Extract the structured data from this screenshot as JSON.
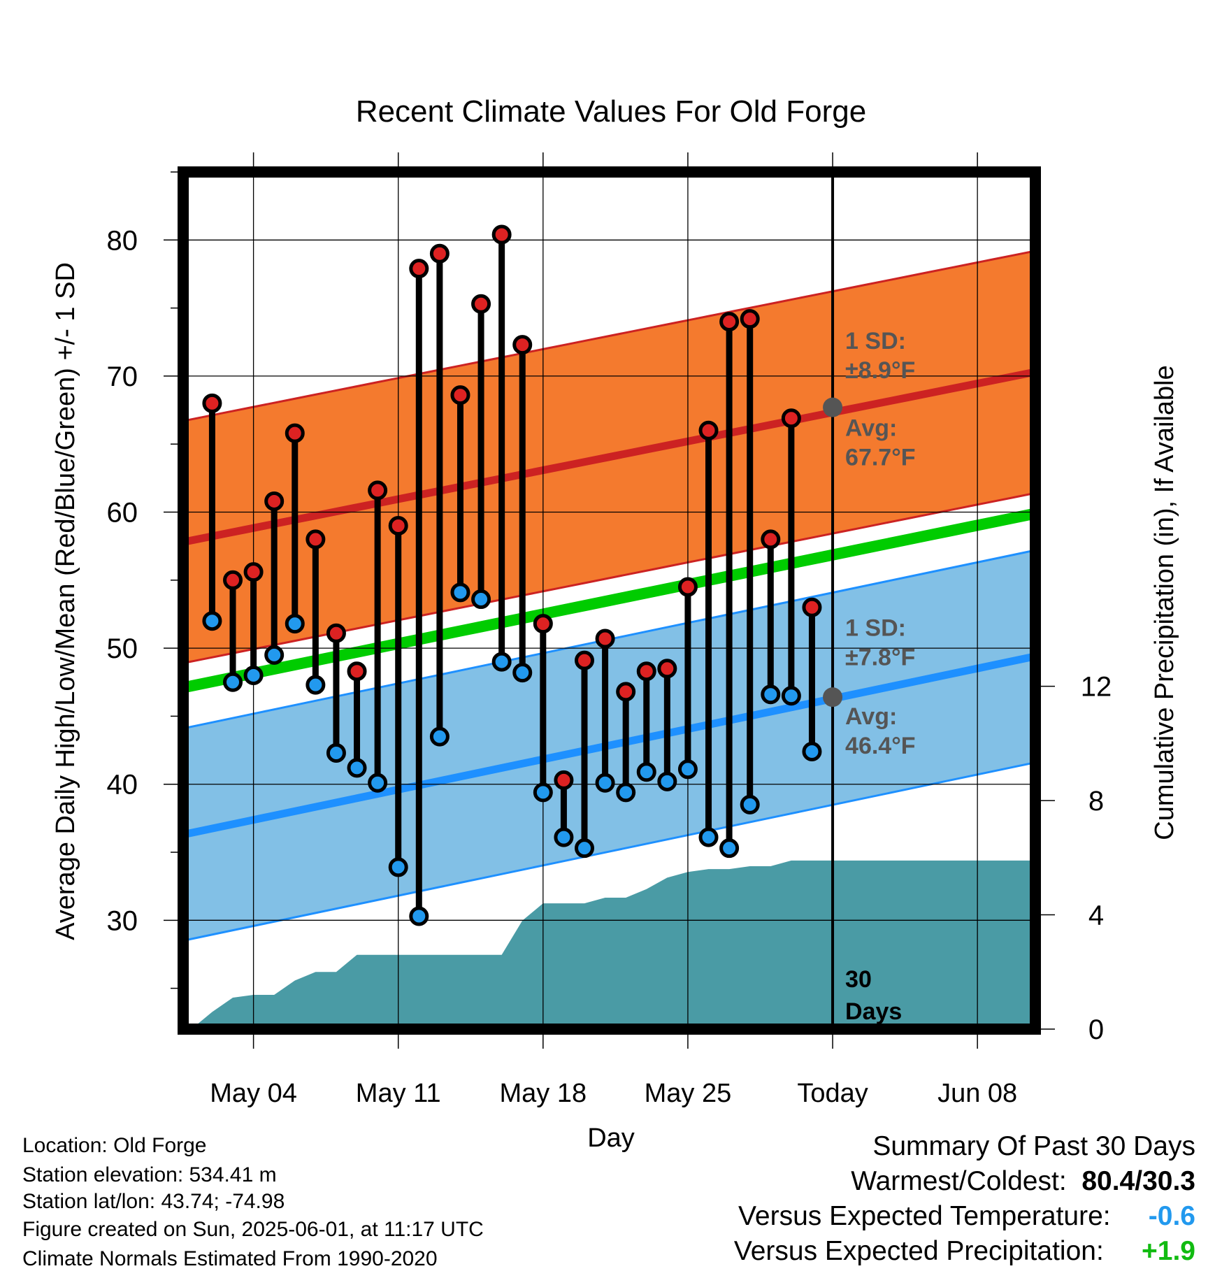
{
  "chart_data": {
    "type": "line",
    "title": "Recent Climate Values For Old Forge",
    "xlabel": "Day",
    "ylabel": "Average Daily High/Low/Mean (Red/Blue/Green) +/- 1 SD",
    "y2label": "Cumulative Precipitation (in), If Available",
    "ylim": [
      22,
      85
    ],
    "y2lim": [
      0,
      30
    ],
    "yticks": [
      30,
      40,
      50,
      60,
      70,
      80
    ],
    "y2ticks": [
      0,
      4,
      8,
      12
    ],
    "xlim": [
      -0.4,
      40.8
    ],
    "xticks": [
      {
        "day": 3,
        "label": "May 04"
      },
      {
        "day": 10,
        "label": "May 11"
      },
      {
        "day": 17,
        "label": "May 18"
      },
      {
        "day": 24,
        "label": "May 25"
      },
      {
        "day": 31,
        "label": "Today"
      },
      {
        "day": 38,
        "label": "Jun 08"
      }
    ],
    "today_day": 31,
    "grid": true,
    "days": [
      1,
      2,
      3,
      4,
      5,
      6,
      7,
      8,
      9,
      10,
      11,
      12,
      13,
      14,
      15,
      16,
      17,
      18,
      19,
      20,
      21,
      22,
      23,
      24,
      25,
      26,
      27,
      28,
      29,
      30
    ],
    "observed_high": [
      68.0,
      55.0,
      55.6,
      60.8,
      65.8,
      58.0,
      51.1,
      48.3,
      61.6,
      59.0,
      77.9,
      79.0,
      68.6,
      75.3,
      80.4,
      72.3,
      51.8,
      40.3,
      49.1,
      50.7,
      46.8,
      48.3,
      48.5,
      54.5,
      66.0,
      74.0,
      74.2,
      58.0,
      66.9,
      53.0
    ],
    "observed_low": [
      52.0,
      47.5,
      48.0,
      49.5,
      51.8,
      47.3,
      42.3,
      41.2,
      40.1,
      33.9,
      30.3,
      43.5,
      54.1,
      53.6,
      49.0,
      48.2,
      39.4,
      36.1,
      35.3,
      40.1,
      39.4,
      40.9,
      40.2,
      41.1,
      36.1,
      35.3,
      38.5,
      46.6,
      46.5,
      42.4
    ],
    "normal_high": {
      "start": 57.8,
      "end": 70.3,
      "sd": 8.9
    },
    "normal_low": {
      "start": 36.3,
      "end": 49.4,
      "sd": 7.8
    },
    "normal_mean": {
      "start": 47.1,
      "end": 59.9
    },
    "cumulative_precip": {
      "x": [
        -0.4,
        0,
        1,
        2,
        3,
        4,
        5,
        6,
        7,
        8,
        9,
        10,
        11,
        12,
        13,
        14,
        15,
        16,
        17,
        18,
        19,
        20,
        21,
        22,
        23,
        24,
        25,
        26,
        27,
        28,
        29,
        30,
        40.8
      ],
      "y": [
        0,
        0,
        0.6,
        1.1,
        1.2,
        1.2,
        1.7,
        2.0,
        2.0,
        2.6,
        2.6,
        2.6,
        2.6,
        2.6,
        2.6,
        2.6,
        2.6,
        3.8,
        4.4,
        4.4,
        4.4,
        4.6,
        4.6,
        4.9,
        5.3,
        5.5,
        5.6,
        5.6,
        5.7,
        5.7,
        5.9,
        5.9,
        5.9
      ]
    },
    "annotations": {
      "high_sd_label": "1 SD:",
      "high_sd_value": "±8.9°F",
      "high_avg_label": "Avg:",
      "high_avg_value": "67.7°F",
      "high_avg_marker": 67.7,
      "low_sd_label": "1 SD:",
      "low_sd_value": "±7.8°F",
      "low_avg_label": "Avg:",
      "low_avg_value": "46.4°F",
      "low_avg_marker": 46.4,
      "days_label_1": "30",
      "days_label_2": "Days"
    },
    "colors": {
      "high_band": "#f47a2e",
      "high_line": "#cc2222",
      "low_band": "#82c0e6",
      "low_line": "#1e90ff",
      "mean_line": "#00cc00",
      "precip": "#4a9ba5",
      "high_marker": "#dd2222",
      "low_marker": "#2299ee",
      "annotation_text": "#555555"
    }
  },
  "info": {
    "location": "Location: Old Forge",
    "elevation": "Station elevation: 534.41 m",
    "latlon": "Station lat/lon: 43.74; -74.98",
    "created": "Figure created on Sun, 2025-06-01, at 11:17 UTC",
    "normals": "Climate Normals Estimated From 1990-2020"
  },
  "summary": {
    "title": "Summary Of Past 30 Days",
    "warm_cold_label": "Warmest/Coldest:",
    "warm_cold_value": "80.4/30.3",
    "temp_label": "Versus Expected Temperature:",
    "temp_value": "-0.6",
    "temp_color": "#2299ee",
    "precip_label": "Versus Expected Precipitation:",
    "precip_value": "+1.9",
    "precip_color": "#11bb11"
  }
}
